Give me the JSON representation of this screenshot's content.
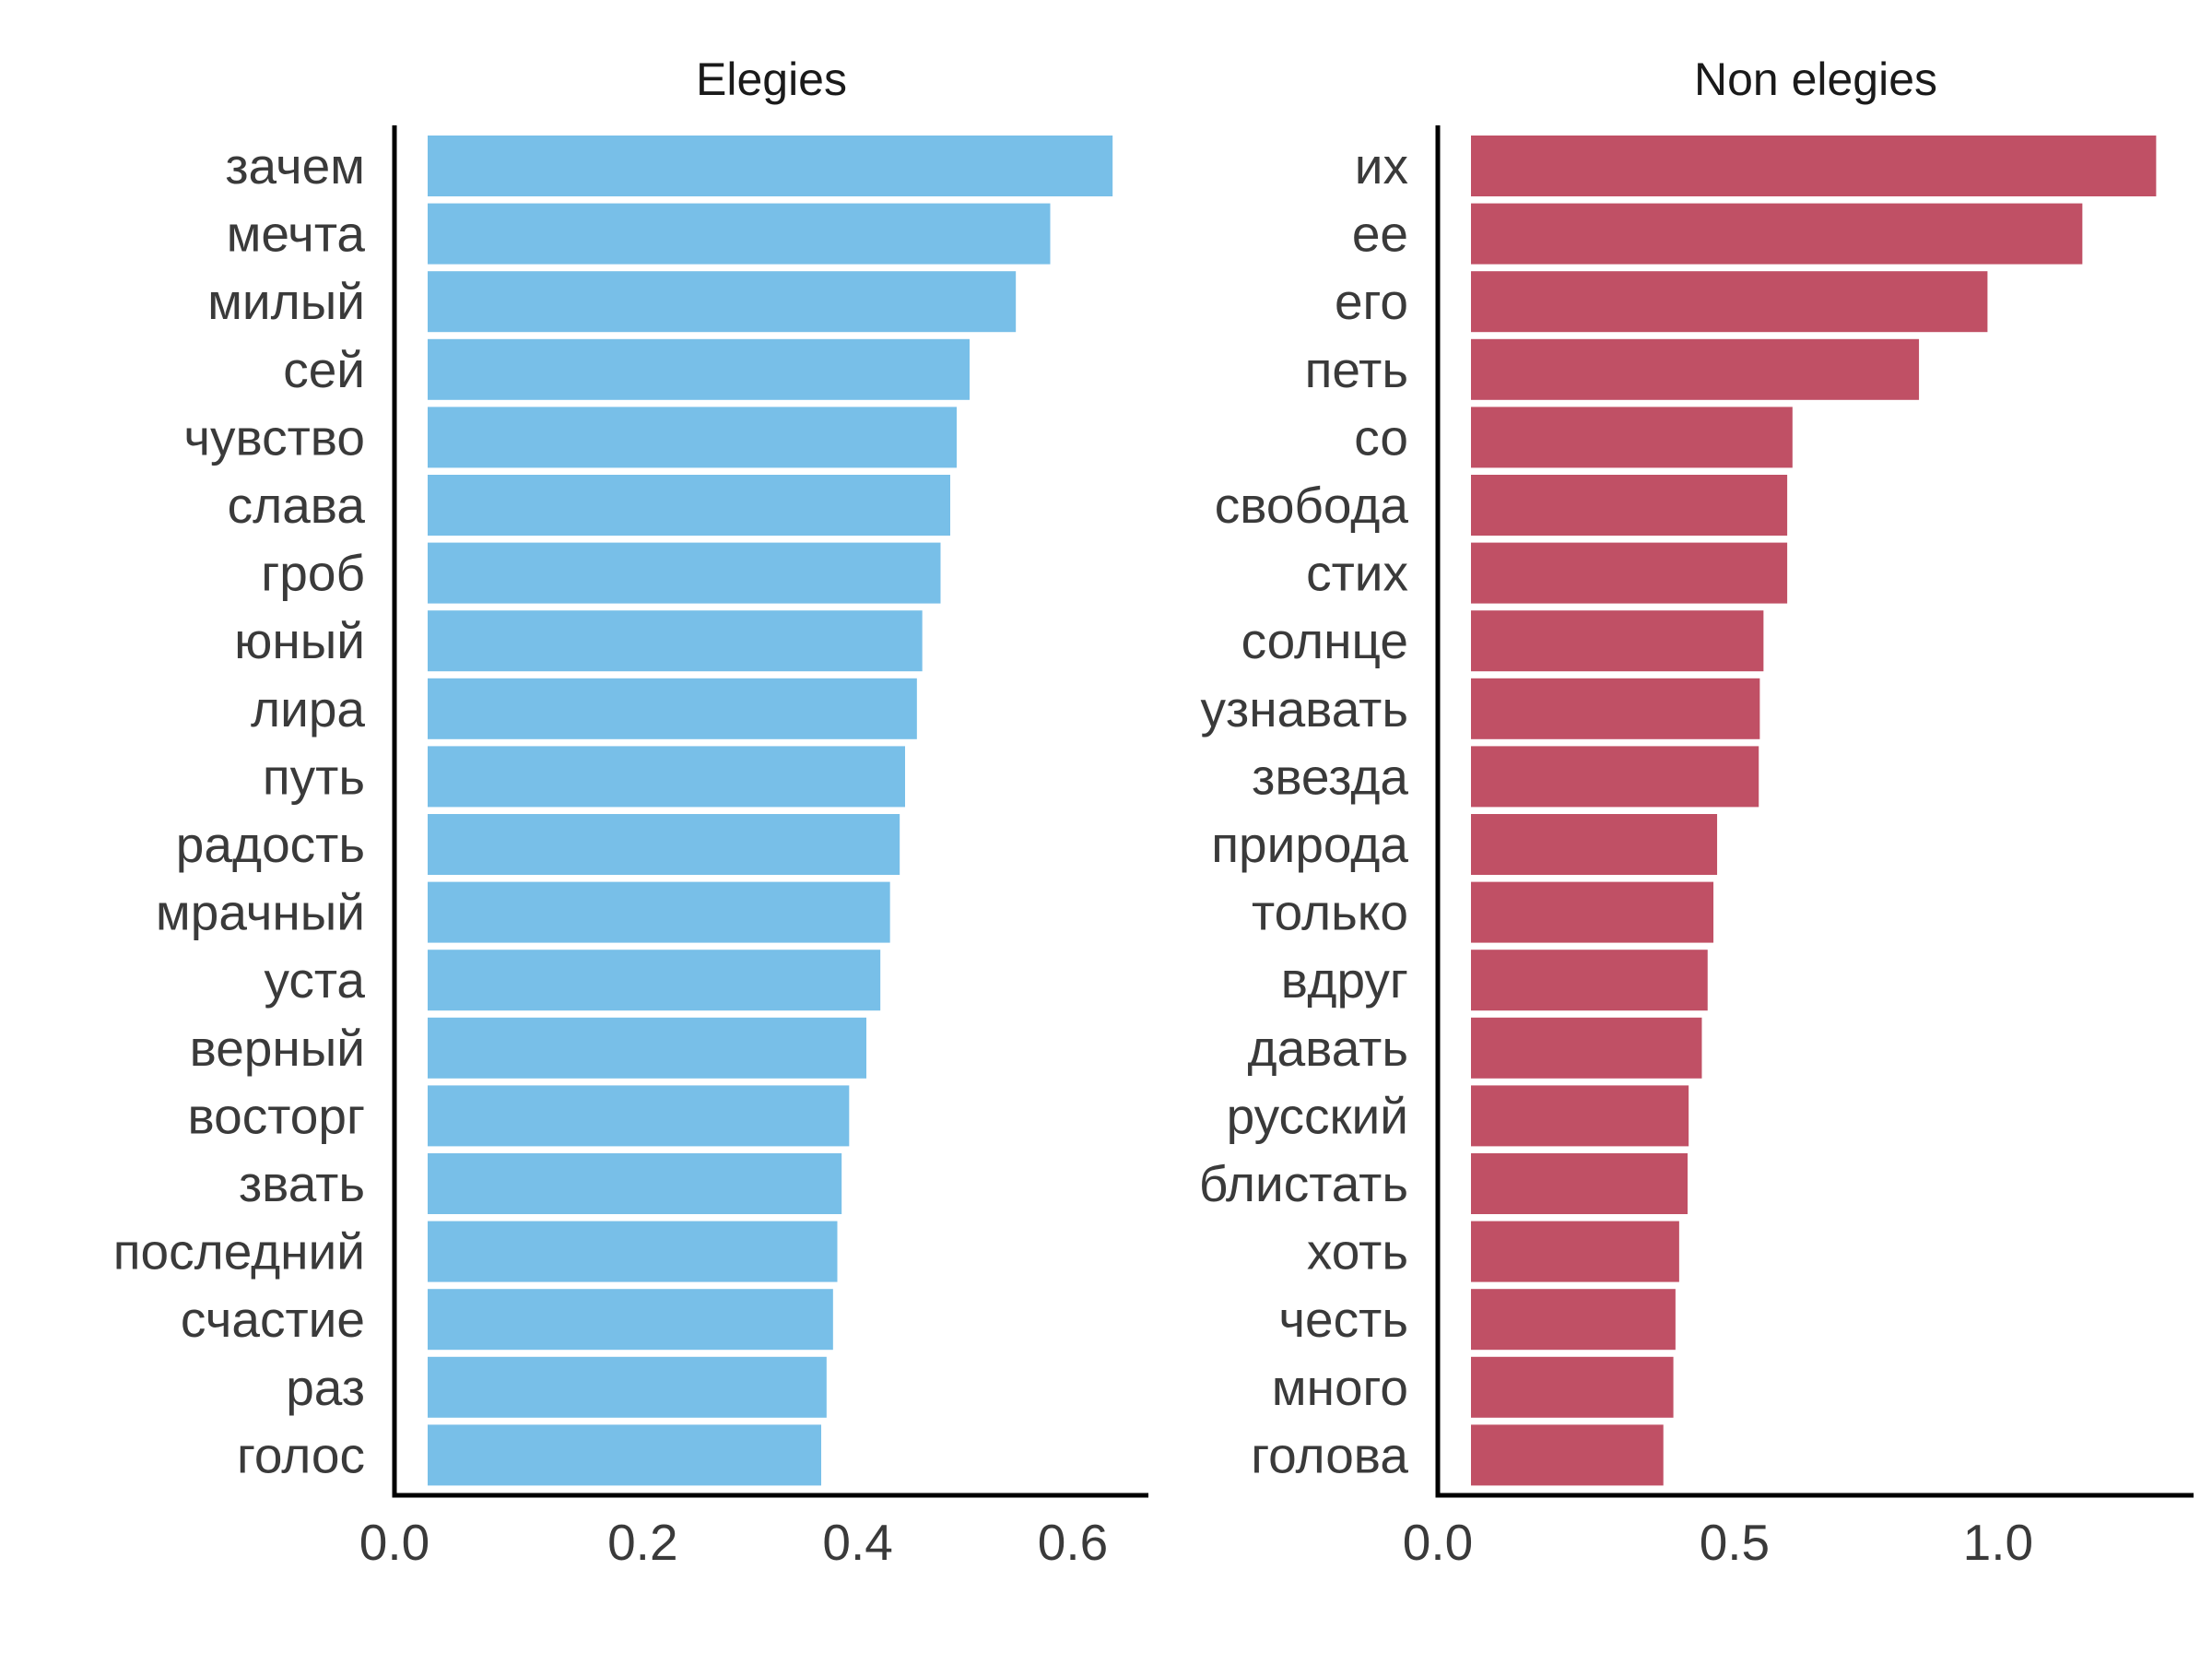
{
  "chart_data": [
    {
      "type": "bar",
      "orientation": "horizontal",
      "title": "Elegies",
      "color": "#78bfe8",
      "xlim": [
        0,
        0.66
      ],
      "xticks": [
        0.0,
        0.2,
        0.4,
        0.6
      ],
      "xtick_labels": [
        "0.0",
        "0.2",
        "0.4",
        "0.6"
      ],
      "xlabel": "",
      "ylabel": "",
      "grid": false,
      "categories": [
        "зачем",
        "мечта",
        "милый",
        "сей",
        "чувство",
        "слава",
        "гроб",
        "юный",
        "лира",
        "путь",
        "радость",
        "мрачный",
        "уста",
        "верный",
        "восторг",
        "звать",
        "последний",
        "счастие",
        "раз",
        "голос"
      ],
      "values": [
        0.637,
        0.579,
        0.547,
        0.504,
        0.492,
        0.486,
        0.477,
        0.46,
        0.455,
        0.444,
        0.439,
        0.43,
        0.421,
        0.408,
        0.392,
        0.385,
        0.381,
        0.377,
        0.371,
        0.366
      ]
    },
    {
      "type": "bar",
      "orientation": "horizontal",
      "title": "Non elegies",
      "color": "#c05065",
      "xlim": [
        0,
        1.35
      ],
      "xticks": [
        0.0,
        0.5,
        1.0
      ],
      "xtick_labels": [
        "0.0",
        "0.5",
        "1.0"
      ],
      "xlabel": "",
      "ylabel": "",
      "grid": false,
      "categories": [
        "их",
        "ее",
        "его",
        "петь",
        "со",
        "свобода",
        "стих",
        "солнце",
        "узнавать",
        "звезда",
        "природа",
        "только",
        "вдруг",
        "давать",
        "русский",
        "блистать",
        "хоть",
        "честь",
        "много",
        "голова"
      ],
      "values": [
        1.3,
        1.16,
        0.98,
        0.85,
        0.61,
        0.6,
        0.6,
        0.555,
        0.548,
        0.546,
        0.467,
        0.46,
        0.449,
        0.438,
        0.413,
        0.411,
        0.395,
        0.388,
        0.384,
        0.365
      ]
    }
  ]
}
